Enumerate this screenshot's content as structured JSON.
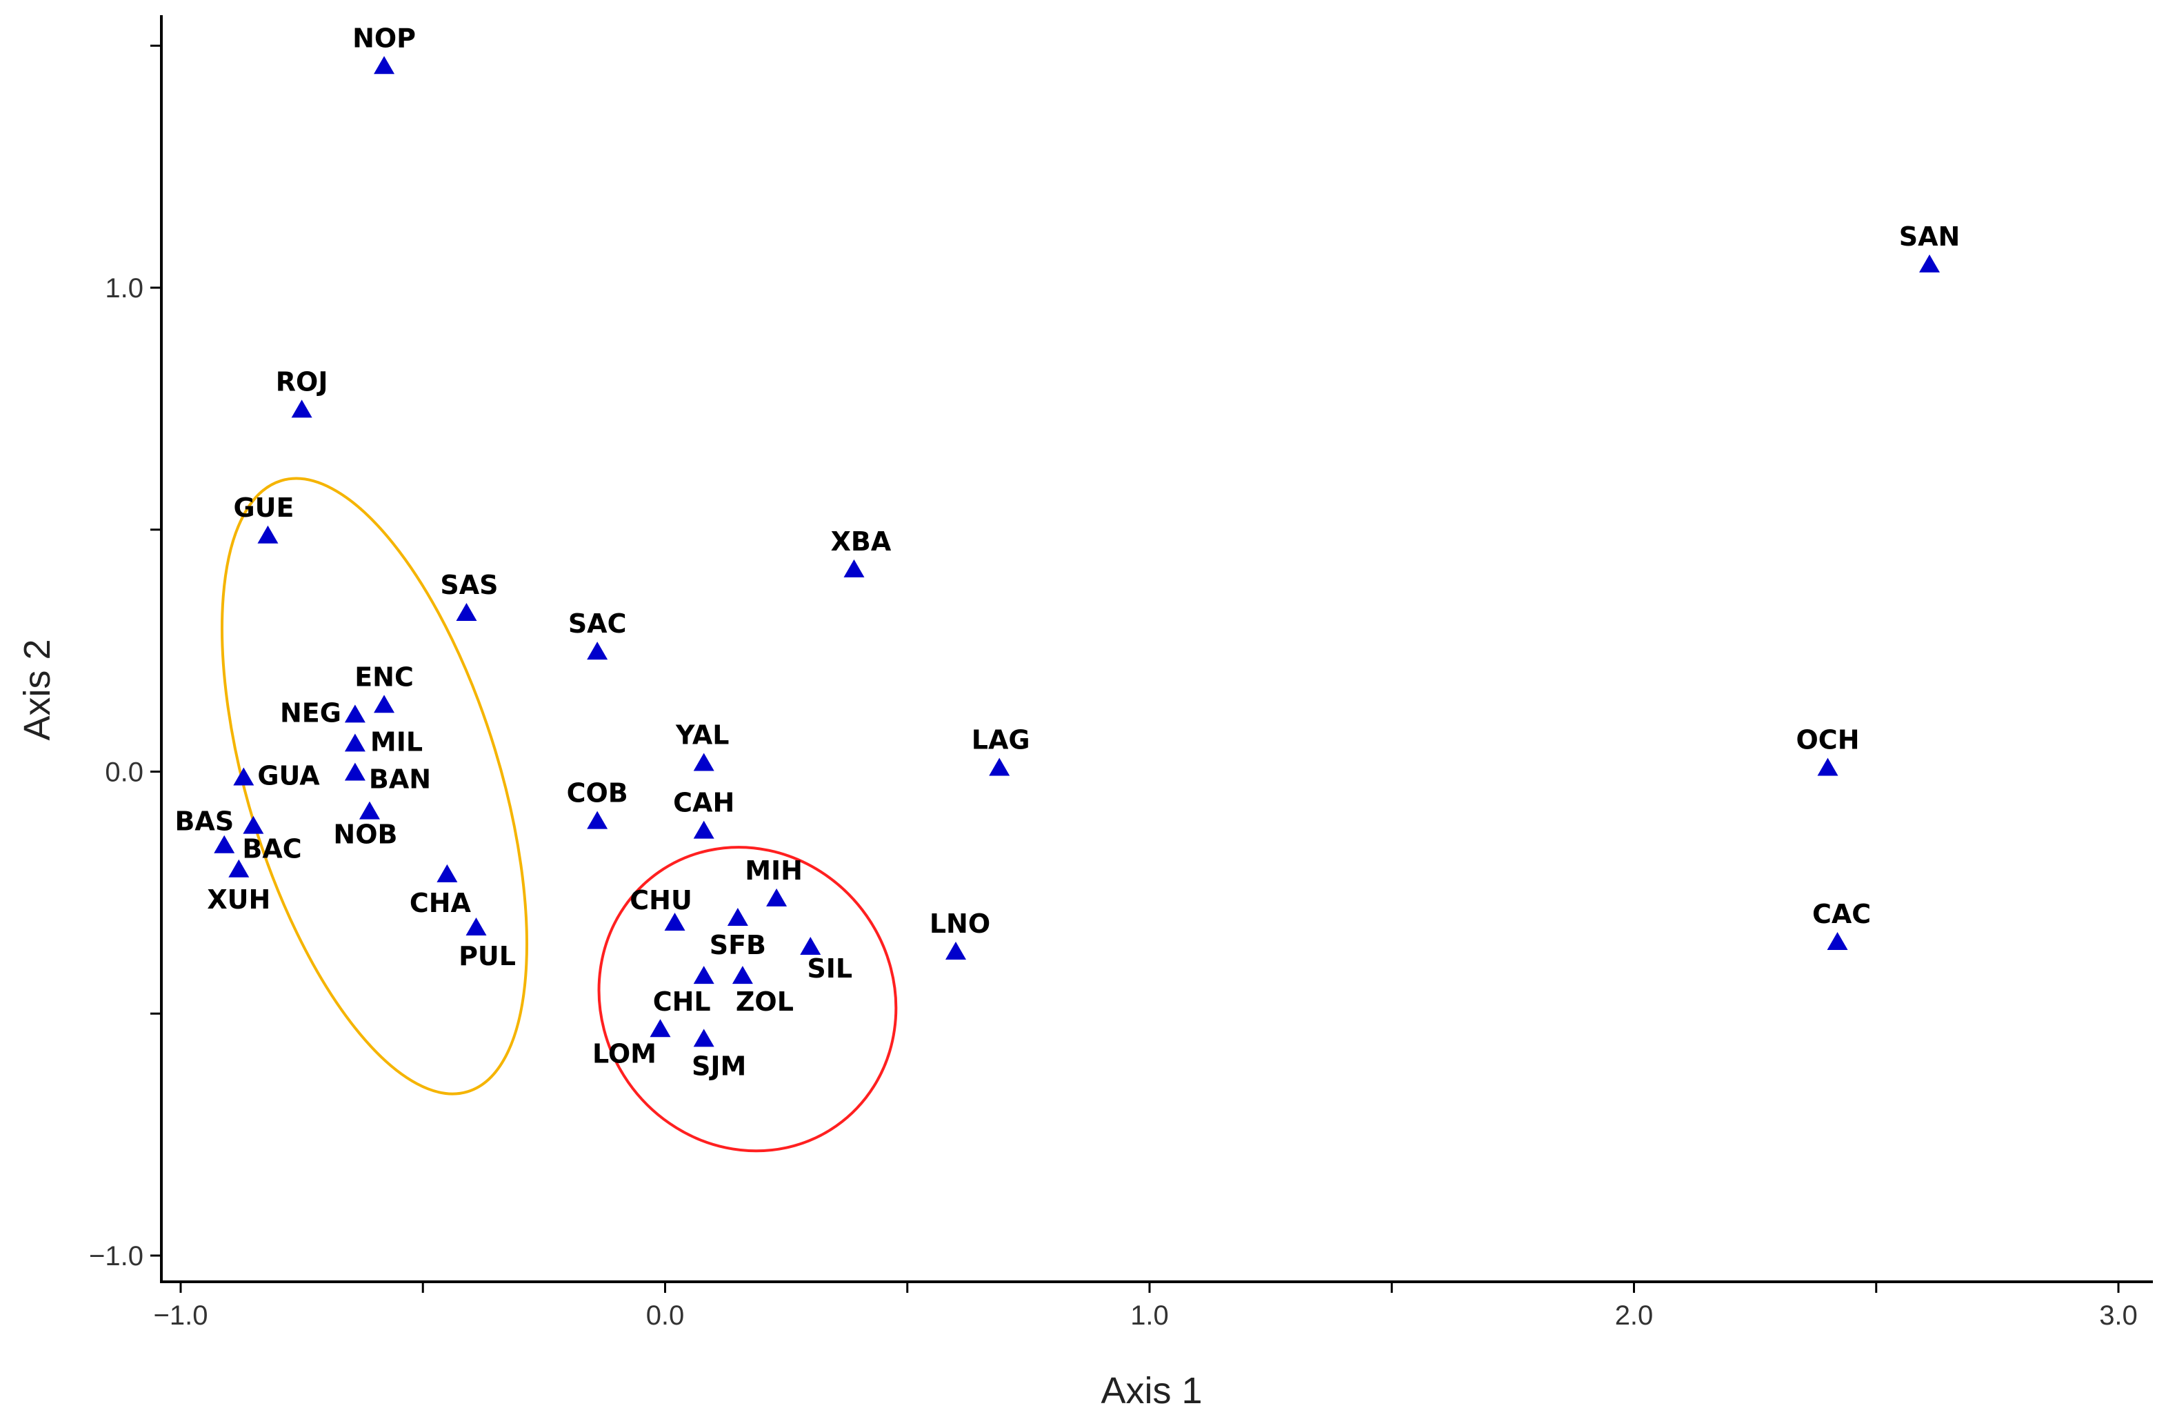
{
  "chart_data": {
    "type": "scatter",
    "xlabel": "Axis 1",
    "ylabel": "Axis 2",
    "xlim": [
      -1.05,
      3.05
    ],
    "ylim": [
      -1.03,
      1.55
    ],
    "x_ticks": [
      -1.0,
      -0.5,
      0.0,
      0.5,
      1.0,
      1.5,
      2.0,
      2.5,
      3.0
    ],
    "x_tick_labels": [
      "−1.0",
      "",
      "0.0",
      "",
      "1.0",
      "",
      "2.0",
      "",
      "3.0"
    ],
    "y_ticks": [
      -1.0,
      -0.5,
      0.0,
      0.5,
      1.0,
      1.5
    ],
    "y_tick_labels": [
      "−1.0",
      "",
      "0.0",
      "",
      "1.0",
      ""
    ],
    "marker": "triangle",
    "marker_color": "#0000cc",
    "points": [
      {
        "label": "NOP",
        "x": -0.58,
        "y": 1.46
      },
      {
        "label": "SAN",
        "x": 2.61,
        "y": 1.05
      },
      {
        "label": "ROJ",
        "x": -0.75,
        "y": 0.75
      },
      {
        "label": "GUE",
        "x": -0.82,
        "y": 0.49
      },
      {
        "label": "XBA",
        "x": 0.39,
        "y": 0.42
      },
      {
        "label": "SAS",
        "x": -0.41,
        "y": 0.33
      },
      {
        "label": "SAC",
        "x": -0.14,
        "y": 0.25
      },
      {
        "label": "ENC",
        "x": -0.58,
        "y": 0.14
      },
      {
        "label": "NEG",
        "x": -0.64,
        "y": 0.12
      },
      {
        "label": "MIL",
        "x": -0.64,
        "y": 0.06
      },
      {
        "label": "YAL",
        "x": 0.08,
        "y": 0.02
      },
      {
        "label": "LAG",
        "x": 0.69,
        "y": 0.01
      },
      {
        "label": "OCH",
        "x": 2.4,
        "y": 0.01
      },
      {
        "label": "GUA",
        "x": -0.87,
        "y": -0.01
      },
      {
        "label": "BAN",
        "x": -0.64,
        "y": 0.0
      },
      {
        "label": "NOB",
        "x": -0.61,
        "y": -0.08
      },
      {
        "label": "COB",
        "x": -0.14,
        "y": -0.1
      },
      {
        "label": "CAH",
        "x": 0.08,
        "y": -0.12
      },
      {
        "label": "BAS",
        "x": -0.91,
        "y": -0.15
      },
      {
        "label": "BAC",
        "x": -0.85,
        "y": -0.11
      },
      {
        "label": "XUH",
        "x": -0.88,
        "y": -0.2
      },
      {
        "label": "CHA",
        "x": -0.45,
        "y": -0.21
      },
      {
        "label": "MIH",
        "x": 0.23,
        "y": -0.26
      },
      {
        "label": "CHU",
        "x": 0.02,
        "y": -0.31
      },
      {
        "label": "SFB",
        "x": 0.15,
        "y": -0.3
      },
      {
        "label": "PUL",
        "x": -0.39,
        "y": -0.32
      },
      {
        "label": "LNO",
        "x": 0.6,
        "y": -0.37
      },
      {
        "label": "CAC",
        "x": 2.42,
        "y": -0.35
      },
      {
        "label": "SIL",
        "x": 0.3,
        "y": -0.36
      },
      {
        "label": "CHL",
        "x": 0.08,
        "y": -0.42
      },
      {
        "label": "ZOL",
        "x": 0.16,
        "y": -0.42
      },
      {
        "label": "LOM",
        "x": -0.01,
        "y": -0.53
      },
      {
        "label": "SJM",
        "x": 0.08,
        "y": -0.55
      }
    ],
    "ellipses": [
      {
        "color": "#f5b400",
        "cx": -0.6,
        "cy": -0.03,
        "rx": 0.26,
        "ry": 0.66,
        "angle_deg": -17
      },
      {
        "color": "#ff2020",
        "cx": 0.17,
        "cy": -0.47,
        "rx": 0.3,
        "ry": 0.32,
        "angle_deg": -35
      }
    ]
  }
}
